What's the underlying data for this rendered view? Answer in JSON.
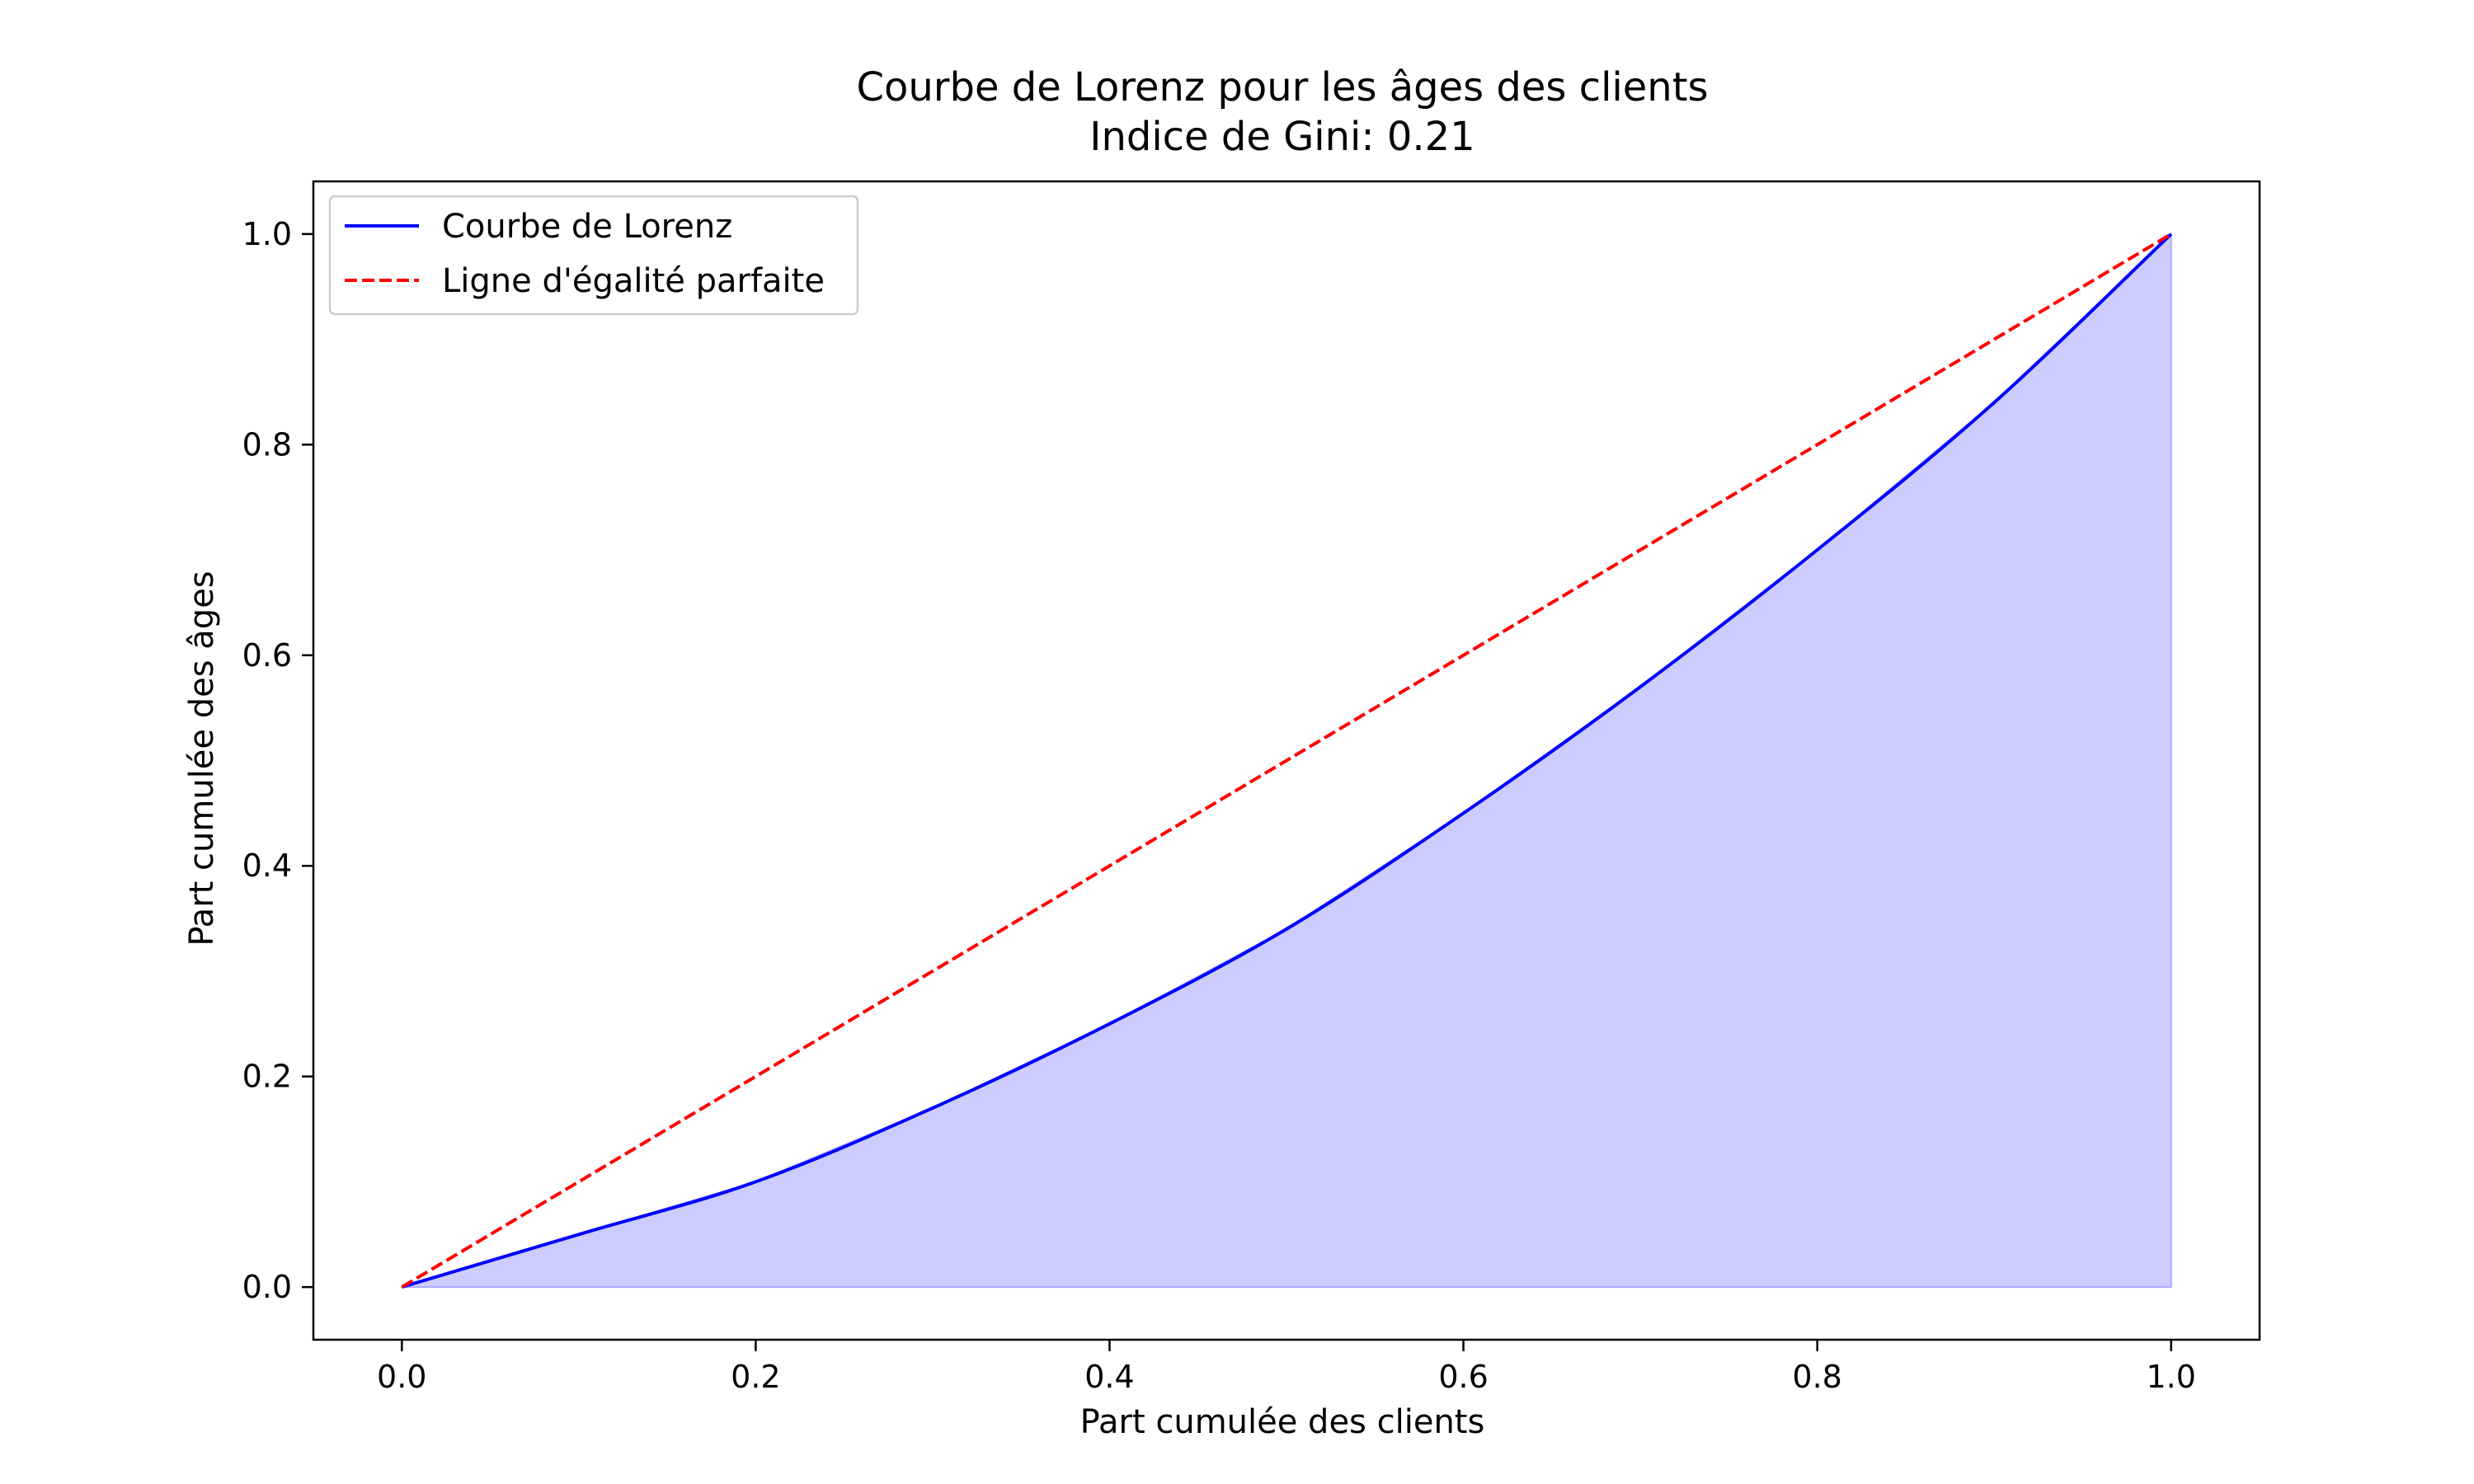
{
  "chart_data": {
    "type": "line",
    "title": "Courbe de Lorenz pour les âges des clients",
    "subtitle": "Indice de Gini: 0.21",
    "xlabel": "Part cumulée des clients",
    "ylabel": "Part cumulée des âges",
    "xlim": [
      -0.05,
      1.05
    ],
    "ylim": [
      -0.05,
      1.05
    ],
    "x_ticks": [
      0.0,
      0.2,
      0.4,
      0.6,
      0.8,
      1.0
    ],
    "x_tick_labels": [
      "0.0",
      "0.2",
      "0.4",
      "0.6",
      "0.8",
      "1.0"
    ],
    "y_ticks": [
      0.0,
      0.2,
      0.4,
      0.6,
      0.8,
      1.0
    ],
    "y_tick_labels": [
      "0.0",
      "0.2",
      "0.4",
      "0.6",
      "0.8",
      "1.0"
    ],
    "grid": false,
    "legend_position": "top-left",
    "series": [
      {
        "name": "Courbe de Lorenz",
        "color": "#0000ff",
        "style": "solid",
        "fill": "#ccccff",
        "x": [
          0.0,
          0.1,
          0.2,
          0.3,
          0.4,
          0.5,
          0.6,
          0.7,
          0.8,
          0.9,
          1.0
        ],
        "y": [
          0.0,
          0.05,
          0.1,
          0.17,
          0.25,
          0.34,
          0.45,
          0.57,
          0.7,
          0.84,
          1.0
        ]
      },
      {
        "name": "Ligne d'égalité parfaite",
        "color": "#ff0000",
        "style": "dashed",
        "x": [
          0.0,
          1.0
        ],
        "y": [
          0.0,
          1.0
        ]
      }
    ]
  }
}
